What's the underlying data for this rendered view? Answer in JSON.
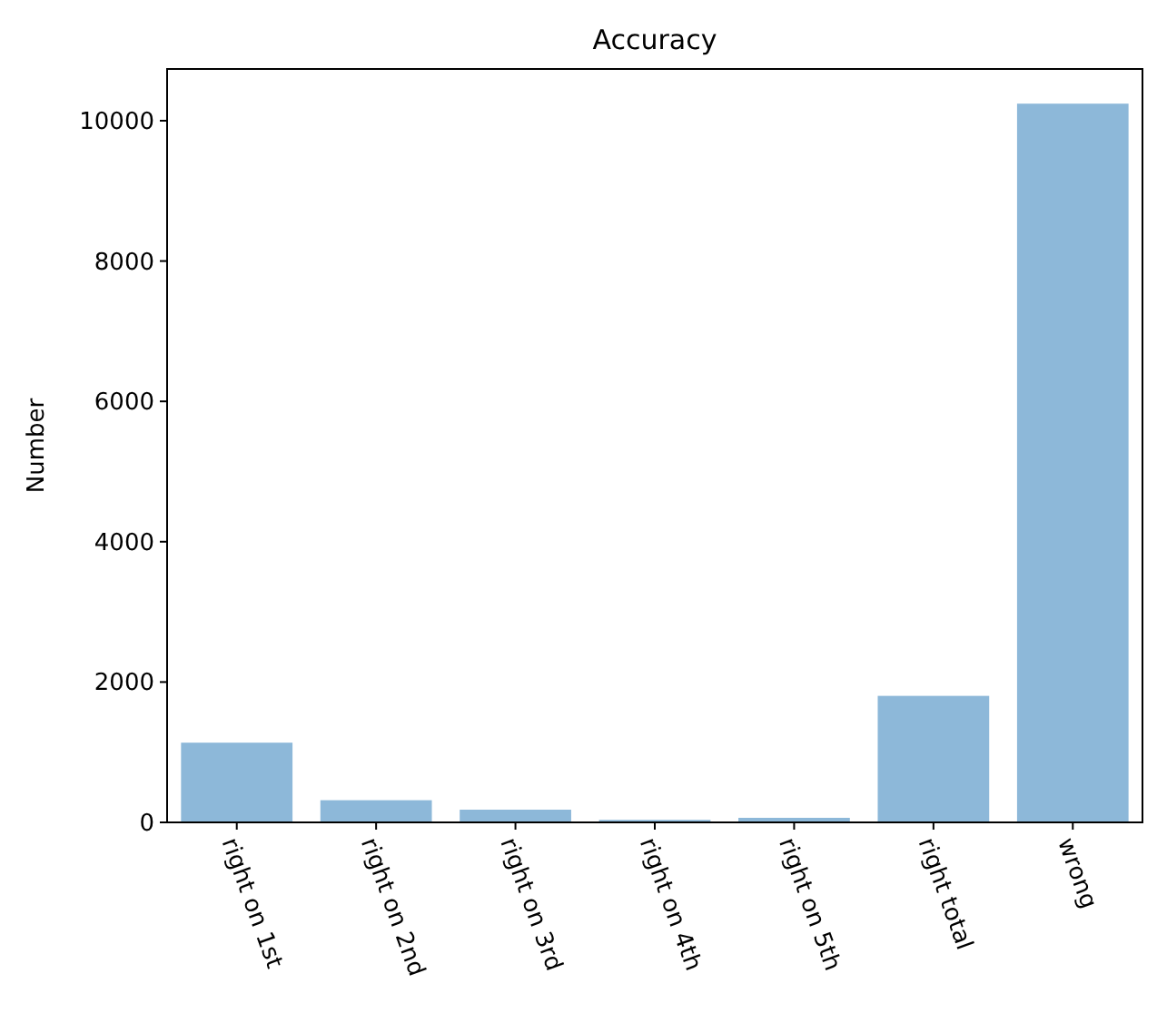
{
  "chart_data": {
    "type": "bar",
    "title": "Accuracy",
    "ylabel": "Number",
    "categories": [
      "right on 1st",
      "right on 2nd",
      "right on 3rd",
      "right on 4th",
      "right on 5th",
      "right total",
      "wrong"
    ],
    "values": [
      1136,
      316,
      181,
      36,
      65,
      1803,
      10243
    ],
    "color": "#8db8d9",
    "ylim": [
      0,
      10737
    ],
    "yticks": [
      0,
      2000,
      4000,
      6000,
      8000,
      10000
    ],
    "grid": false
  }
}
